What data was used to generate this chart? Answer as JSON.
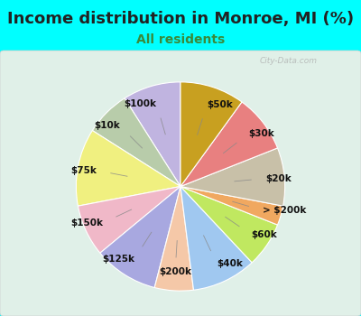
{
  "title": "Income distribution in Monroe, MI (%)",
  "subtitle": "All residents",
  "background_color": "#00FFFF",
  "chart_bg_color": "#e0f0e8",
  "labels": [
    "$100k",
    "$10k",
    "$75k",
    "$150k",
    "$125k",
    "$200k",
    "$40k",
    "$60k",
    "> $200k",
    "$20k",
    "$30k",
    "$50k"
  ],
  "values": [
    9,
    7,
    12,
    8,
    10,
    6,
    10,
    7,
    3,
    9,
    9,
    10
  ],
  "colors": [
    "#c0b4e0",
    "#b8ccaa",
    "#f0f080",
    "#f0b8c8",
    "#a8a8e0",
    "#f5c8a8",
    "#a0c8f0",
    "#c0e860",
    "#f0a860",
    "#c8c0a8",
    "#e88080",
    "#c8a020"
  ],
  "startangle": 90,
  "title_fontsize": 13,
  "subtitle_fontsize": 10,
  "label_fontsize": 7.5,
  "watermark": "City-Data.com",
  "title_color": "#222222",
  "subtitle_color": "#3a8a3a"
}
